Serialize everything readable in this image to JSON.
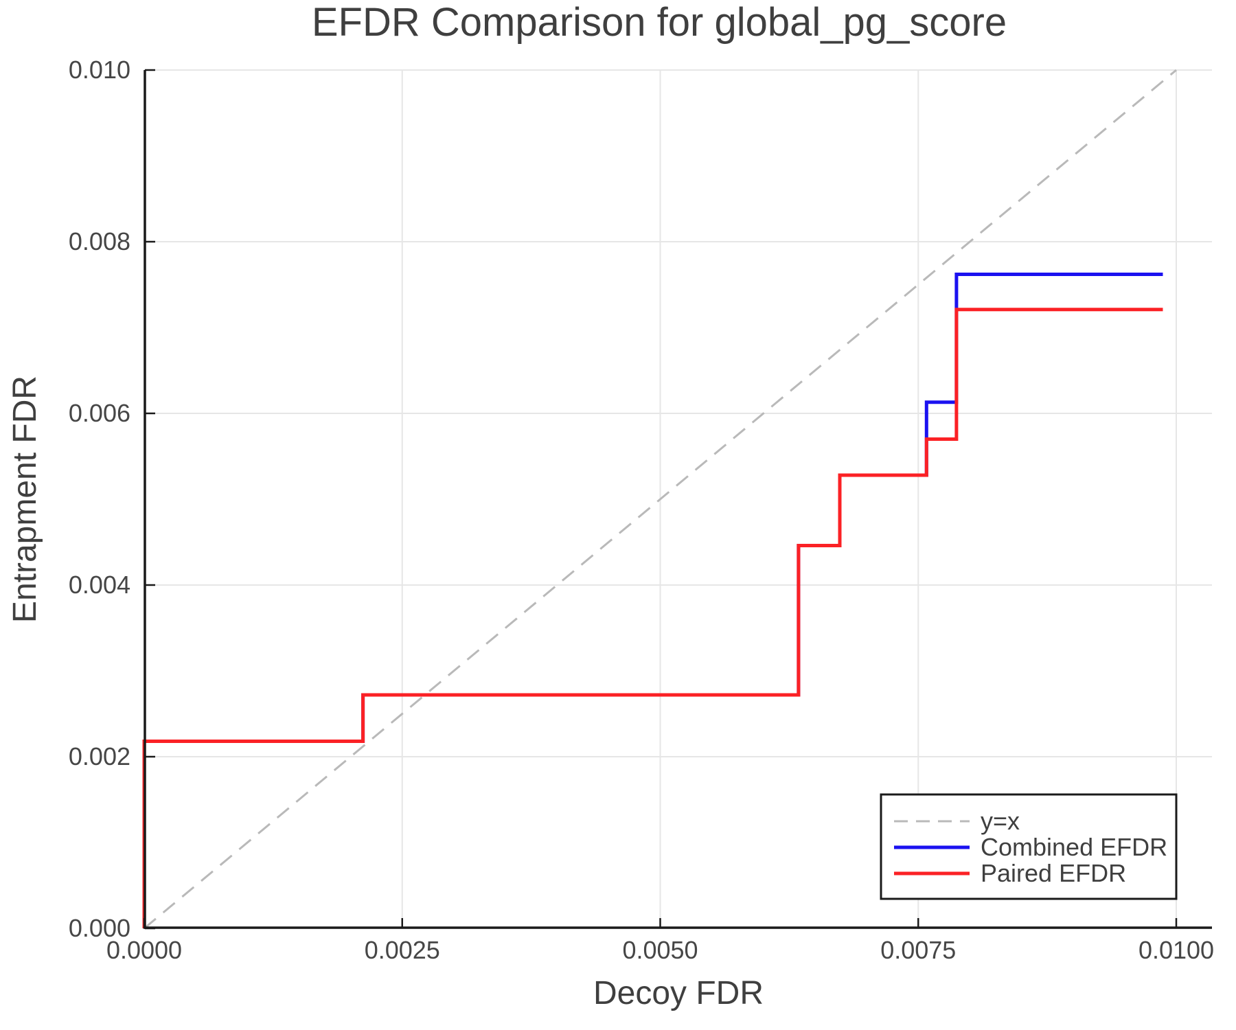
{
  "figure": {
    "title": "EFDR Comparison for global_pg_score",
    "xlabel": "Decoy FDR",
    "ylabel": "Entrapment FDR"
  },
  "colors": {
    "combined": "#1b12f0",
    "paired": "#fb2125",
    "identity": "#b9b9b9",
    "grid": "#e6e6e6",
    "spine": "#1a1a1a",
    "text": "#3f3f3f"
  },
  "chart_data": {
    "type": "line",
    "subtype": "step",
    "title": "EFDR Comparison for global_pg_score",
    "xlabel": "Decoy FDR",
    "ylabel": "Entrapment FDR",
    "xlim": [
      0.0,
      0.01035
    ],
    "ylim": [
      0.0,
      0.01
    ],
    "grid": true,
    "legend_position": "lower right",
    "x_ticks": {
      "values": [
        0.0,
        0.0025,
        0.005,
        0.0075,
        0.01
      ],
      "labels": [
        "0.0000",
        "0.0025",
        "0.0050",
        "0.0075",
        "0.0100"
      ]
    },
    "y_ticks": {
      "values": [
        0.0,
        0.002,
        0.004,
        0.006,
        0.008,
        0.01
      ],
      "labels": [
        "0.000",
        "0.002",
        "0.004",
        "0.006",
        "0.008",
        "0.010"
      ]
    },
    "series": [
      {
        "name": "y=x",
        "style": "dashed",
        "color": "#b9b9b9",
        "width": 3,
        "points": [
          [
            0.0,
            0.0
          ],
          [
            0.01,
            0.01
          ]
        ]
      },
      {
        "name": "Combined EFDR",
        "style": "solid",
        "color": "#1b12f0",
        "width": 5,
        "points": [
          [
            0.0,
            0.0
          ],
          [
            0.0,
            0.00218
          ],
          [
            0.00212,
            0.00218
          ],
          [
            0.00212,
            0.00272
          ],
          [
            0.00634,
            0.00272
          ],
          [
            0.00634,
            0.00446
          ],
          [
            0.00674,
            0.00446
          ],
          [
            0.00674,
            0.00528
          ],
          [
            0.00758,
            0.00528
          ],
          [
            0.00758,
            0.00613
          ],
          [
            0.00787,
            0.00613
          ],
          [
            0.00787,
            0.00762
          ],
          [
            0.00987,
            0.00762
          ]
        ]
      },
      {
        "name": "Paired EFDR",
        "style": "solid",
        "color": "#fb2125",
        "width": 5,
        "points": [
          [
            0.0,
            0.0
          ],
          [
            0.0,
            0.00218
          ],
          [
            0.00212,
            0.00218
          ],
          [
            0.00212,
            0.00272
          ],
          [
            0.00634,
            0.00272
          ],
          [
            0.00634,
            0.00446
          ],
          [
            0.00674,
            0.00446
          ],
          [
            0.00674,
            0.00528
          ],
          [
            0.00758,
            0.00528
          ],
          [
            0.00758,
            0.0057
          ],
          [
            0.00787,
            0.0057
          ],
          [
            0.00787,
            0.00721
          ],
          [
            0.00987,
            0.00721
          ]
        ]
      }
    ]
  }
}
